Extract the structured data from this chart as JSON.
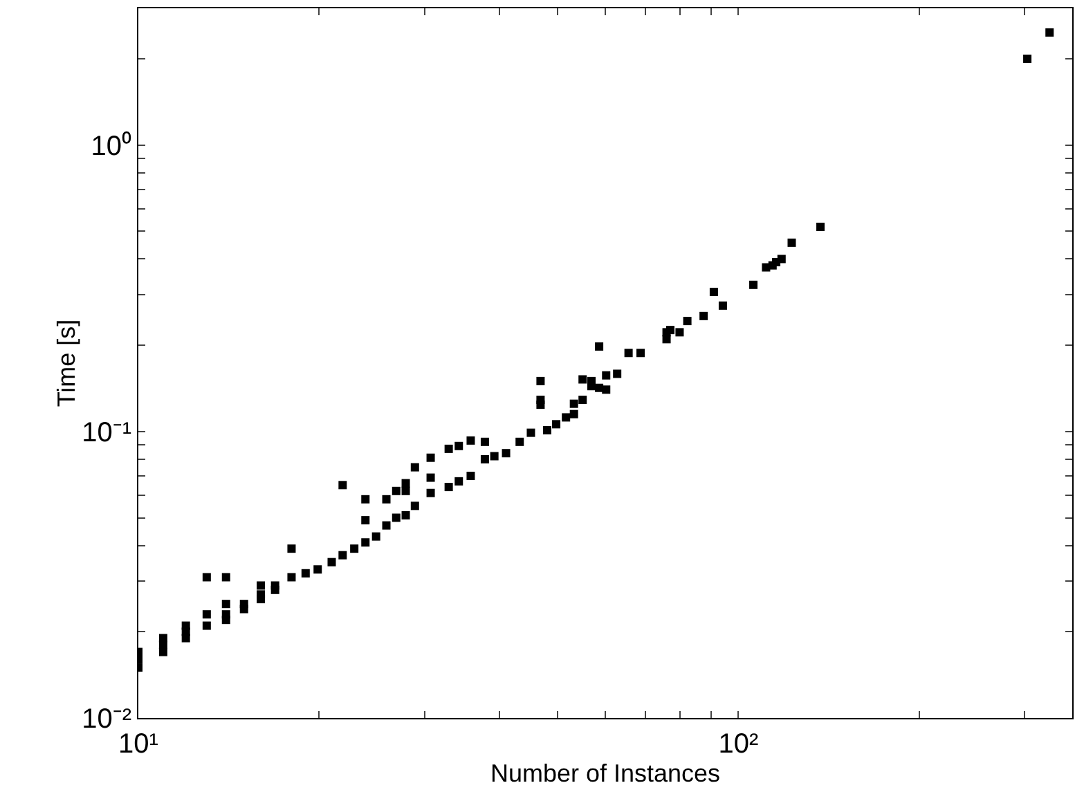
{
  "chart_data": {
    "type": "scatter",
    "xlabel": "Number of Instances",
    "ylabel": "Time [s]",
    "log": "xy",
    "grid": false,
    "marker": "square",
    "xlim": [
      10,
      360
    ],
    "ylim": [
      0.01,
      3
    ],
    "xticks": [
      {
        "value": 10,
        "label": "10¹"
      },
      {
        "value": 20,
        "label": null
      },
      {
        "value": 30,
        "label": null
      },
      {
        "value": 40,
        "label": null
      },
      {
        "value": 50,
        "label": null
      },
      {
        "value": 60,
        "label": null
      },
      {
        "value": 70,
        "label": null
      },
      {
        "value": 80,
        "label": null
      },
      {
        "value": 90,
        "label": null
      },
      {
        "value": 100,
        "label": "10²"
      },
      {
        "value": 200,
        "label": null
      },
      {
        "value": 300,
        "label": null
      }
    ],
    "yticks": [
      {
        "value": 0.01,
        "label": "10⁻²"
      },
      {
        "value": 0.02,
        "label": null
      },
      {
        "value": 0.03,
        "label": null
      },
      {
        "value": 0.04,
        "label": null
      },
      {
        "value": 0.05,
        "label": null
      },
      {
        "value": 0.06,
        "label": null
      },
      {
        "value": 0.07,
        "label": null
      },
      {
        "value": 0.08,
        "label": null
      },
      {
        "value": 0.09,
        "label": null
      },
      {
        "value": 0.1,
        "label": "10⁻¹"
      },
      {
        "value": 0.2,
        "label": null
      },
      {
        "value": 0.3,
        "label": null
      },
      {
        "value": 0.4,
        "label": null
      },
      {
        "value": 0.5,
        "label": null
      },
      {
        "value": 0.6,
        "label": null
      },
      {
        "value": 0.7,
        "label": null
      },
      {
        "value": 0.8,
        "label": null
      },
      {
        "value": 0.9,
        "label": null
      },
      {
        "value": 1,
        "label": "10⁰"
      },
      {
        "value": 2,
        "label": null
      }
    ],
    "series": [
      {
        "color": "#000000",
        "x": [
          10,
          10,
          10,
          11,
          11,
          11,
          12,
          12,
          12,
          13,
          13,
          13,
          14,
          14,
          14,
          14,
          15,
          15,
          16,
          16,
          16,
          16.9,
          16.9,
          18,
          18,
          19,
          19.9,
          21,
          21.9,
          21.9,
          22.9,
          23.9,
          23.9,
          23.9,
          24.9,
          25.9,
          25.9,
          26.9,
          26.9,
          27.9,
          27.9,
          27.9,
          28.9,
          28.9,
          30.7,
          30.7,
          30.7,
          32.9,
          32.9,
          34.2,
          34.2,
          35.8,
          35.8,
          37.8,
          37.8,
          39.2,
          41,
          43.2,
          45.1,
          46.8,
          46.8,
          46.8,
          48,
          49.7,
          51.6,
          53.2,
          53.2,
          55,
          55,
          56.9,
          56.9,
          58.6,
          58.6,
          60.2,
          60.2,
          62.8,
          65.6,
          68.7,
          75.9,
          75.9,
          77,
          79.8,
          82.2,
          87.5,
          91,
          94.2,
          105.9,
          111.2,
          114,
          115.6,
          118,
          122.7,
          137,
          303,
          330
        ],
        "values": [
          0.015,
          0.016,
          0.017,
          0.017,
          0.018,
          0.019,
          0.019,
          0.02,
          0.021,
          0.031,
          0.023,
          0.021,
          0.031,
          0.025,
          0.023,
          0.022,
          0.025,
          0.024,
          0.029,
          0.027,
          0.026,
          0.029,
          0.028,
          0.039,
          0.031,
          0.032,
          0.033,
          0.035,
          0.065,
          0.037,
          0.039,
          0.058,
          0.049,
          0.041,
          0.043,
          0.058,
          0.047,
          0.062,
          0.05,
          0.066,
          0.062,
          0.051,
          0.075,
          0.055,
          0.081,
          0.069,
          0.061,
          0.087,
          0.064,
          0.089,
          0.067,
          0.093,
          0.07,
          0.092,
          0.08,
          0.082,
          0.084,
          0.092,
          0.099,
          0.15,
          0.129,
          0.124,
          0.101,
          0.106,
          0.112,
          0.125,
          0.115,
          0.152,
          0.129,
          0.15,
          0.144,
          0.198,
          0.142,
          0.157,
          0.14,
          0.159,
          0.188,
          0.188,
          0.21,
          0.222,
          0.226,
          0.222,
          0.243,
          0.253,
          0.307,
          0.275,
          0.325,
          0.374,
          0.38,
          0.39,
          0.4,
          0.456,
          0.518,
          2.0,
          2.47
        ]
      }
    ]
  }
}
